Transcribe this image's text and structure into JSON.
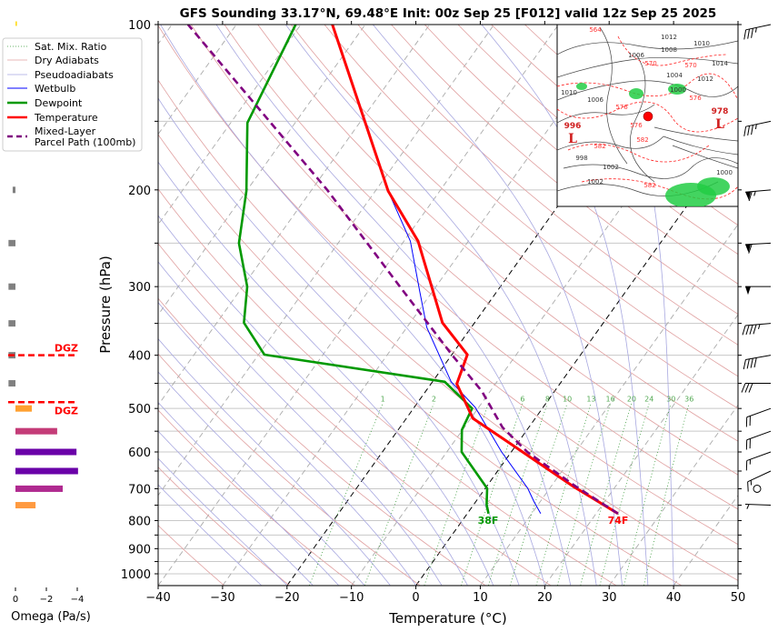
{
  "title": "GFS Sounding 33.17°N, 69.48°E Init: 00z Sep 25 [F012] valid 12z Sep 25 2025",
  "legend": [
    {
      "label": "Sat. Mix. Ratio",
      "color": "#3a9a3a",
      "style": "dotted"
    },
    {
      "label": "Dry Adiabats",
      "color": "#e0a0a0",
      "style": "solid"
    },
    {
      "label": "Pseudoadiabats",
      "color": "#a8a8e0",
      "style": "solid"
    },
    {
      "label": "Wetbulb",
      "color": "#0000ff",
      "style": "solid"
    },
    {
      "label": "Dewpoint",
      "color": "#009900",
      "style": "solid"
    },
    {
      "label": "Temperature",
      "color": "#ff0000",
      "style": "solid"
    },
    {
      "label": "Mixed-Layer",
      "label2": "Parcel Path (100mb)",
      "color": "#800080",
      "style": "dashed"
    }
  ],
  "axes": {
    "xlabel": "Temperature (°C)",
    "ylabel": "Pressure (hPa)",
    "xlim": [
      -40,
      50
    ],
    "ylim": [
      1050,
      100
    ],
    "y_scale": "log",
    "skewed_isotherms": true,
    "x_ticks": [
      "−40",
      "−30",
      "−20",
      "−10",
      "0",
      "10",
      "20",
      "30",
      "40",
      "50"
    ],
    "x_tick_values": [
      -40,
      -30,
      -20,
      -10,
      0,
      10,
      20,
      30,
      40,
      50
    ],
    "y_ticks": [
      "100",
      "200",
      "300",
      "400",
      "500",
      "600",
      "700",
      "800",
      "900",
      "1000"
    ],
    "y_tick_values": [
      100,
      200,
      300,
      400,
      500,
      600,
      700,
      800,
      900,
      1000
    ],
    "y_minor_ticks": [
      150,
      250,
      350,
      450,
      550,
      650,
      750,
      850,
      950
    ],
    "highlighted_isotherms": [
      0,
      -20
    ]
  },
  "chart_data": {
    "type": "line",
    "series": [
      {
        "name": "Temperature",
        "color": "#ff0000",
        "points": [
          [
            777,
            23.4
          ],
          [
            693,
            13.4
          ],
          [
            577,
            -1.4
          ],
          [
            521,
            -9.7
          ],
          [
            451,
            -16.0
          ],
          [
            399,
            -17.6
          ],
          [
            349,
            -25.0
          ],
          [
            248,
            -37.8
          ],
          [
            201,
            -48.0
          ],
          [
            100,
            -75.1
          ]
        ]
      },
      {
        "name": "Dewpoint",
        "color": "#009900",
        "points": [
          [
            777,
            3.3
          ],
          [
            748,
            2.0
          ],
          [
            699,
            0.3
          ],
          [
            600,
            -7.7
          ],
          [
            547,
            -10.1
          ],
          [
            500,
            -10.9
          ],
          [
            447,
            -18.1
          ],
          [
            399,
            -49.1
          ],
          [
            349,
            -55.8
          ],
          [
            300,
            -59.3
          ],
          [
            250,
            -65.4
          ],
          [
            201,
            -70.0
          ],
          [
            151,
            -77.4
          ],
          [
            100,
            -80.8
          ]
        ]
      },
      {
        "name": "Wetbulb",
        "color": "#0000ff",
        "points": [
          [
            777,
            11.4
          ],
          [
            740,
            9.1
          ],
          [
            699,
            6.6
          ],
          [
            600,
            -1.5
          ],
          [
            498,
            -10.5
          ],
          [
            447,
            -17.1
          ],
          [
            356,
            -26.9
          ],
          [
            306,
            -32.0
          ],
          [
            248,
            -39.0
          ],
          [
            201,
            -48.0
          ],
          [
            154,
            -58.2
          ],
          [
            100,
            -75.1
          ]
        ]
      },
      {
        "name": "Mixed-Layer Parcel Path (100mb)",
        "color": "#800080",
        "points": [
          [
            777,
            23.4
          ],
          [
            693,
            13.8
          ],
          [
            600,
            2.5
          ],
          [
            541,
            -4.1
          ],
          [
            465,
            -11.3
          ],
          [
            399,
            -20.0
          ],
          [
            300,
            -35.6
          ],
          [
            200,
            -57.6
          ],
          [
            100,
            -97.5
          ]
        ]
      }
    ],
    "mixing_ratio_lines_gkg": [
      1,
      2,
      4,
      6,
      8,
      10,
      13,
      16,
      20,
      24,
      30,
      36
    ],
    "mixing_ratio_labels": [
      "1",
      "2",
      "6",
      "8",
      "10",
      "13",
      "16",
      "20",
      "24",
      "30",
      "36"
    ],
    "mixing_ratio_label_values": [
      1,
      2,
      6,
      8,
      10,
      13,
      16,
      20,
      24,
      30,
      36
    ],
    "surface_labels": {
      "dewpoint": "38F",
      "temperature": "74F"
    }
  },
  "omega": {
    "xlabel": "Omega (Pa/s)",
    "ticks": [
      "0",
      "−2",
      "−4"
    ],
    "tick_values": [
      0,
      -2,
      -4
    ],
    "bars": [
      {
        "p": 100,
        "value": -0.1,
        "color": "#ffdd22"
      },
      {
        "p": 150,
        "value": -0.3,
        "color": "#ffdd22"
      },
      {
        "p": 200,
        "value": 0.18,
        "color": "#808080"
      },
      {
        "p": 250,
        "value": 0.45,
        "color": "#808080"
      },
      {
        "p": 300,
        "value": 0.45,
        "color": "#808080"
      },
      {
        "p": 350,
        "value": 0.45,
        "color": "#808080"
      },
      {
        "p": 400,
        "value": 0.45,
        "color": "#808080"
      },
      {
        "p": 450,
        "value": 0.45,
        "color": "#808080"
      },
      {
        "p": 500,
        "value": -1.06,
        "color": "#ffa030"
      },
      {
        "p": 550,
        "value": -2.7,
        "color": "#c43c78"
      },
      {
        "p": 600,
        "value": -3.95,
        "color": "#6a00a8"
      },
      {
        "p": 650,
        "value": -4.05,
        "color": "#6a00a8"
      },
      {
        "p": 700,
        "value": -3.06,
        "color": "#b02a90"
      },
      {
        "p": 750,
        "value": -1.3,
        "color": "#ff9a40"
      }
    ],
    "dgz": {
      "label": "DGZ",
      "top_hpa": 400,
      "bottom_hpa": 487,
      "color": "#ff0000"
    }
  },
  "winds": [
    {
      "p": 100,
      "speed_kt": 35,
      "dir": 258
    },
    {
      "p": 150,
      "speed_kt": 35,
      "dir": 258
    },
    {
      "p": 200,
      "speed_kt": 65,
      "dir": 265
    },
    {
      "p": 250,
      "speed_kt": 60,
      "dir": 267
    },
    {
      "p": 300,
      "speed_kt": 50,
      "dir": 270
    },
    {
      "p": 350,
      "speed_kt": 45,
      "dir": 265
    },
    {
      "p": 400,
      "speed_kt": 40,
      "dir": 260
    },
    {
      "p": 450,
      "speed_kt": 30,
      "dir": 270
    },
    {
      "p": 500,
      "speed_kt": 20,
      "dir": 250
    },
    {
      "p": 550,
      "speed_kt": 20,
      "dir": 250
    },
    {
      "p": 600,
      "speed_kt": 15,
      "dir": 250
    },
    {
      "p": 650,
      "speed_kt": 15,
      "dir": 245
    },
    {
      "p": 700,
      "speed_kt": 0,
      "dir": 0
    },
    {
      "p": 750,
      "speed_kt": 5,
      "dir": 272
    }
  ],
  "inset_map": {
    "site_marker_color": "#ff0000",
    "isobar_labels": [
      "1012",
      "1010",
      "1008",
      "1006",
      "1014",
      "1012",
      "1006",
      "1010",
      "1004",
      "1000",
      "998",
      "1002",
      "1002",
      "1000"
    ],
    "height_labels": [
      "564",
      "570",
      "576",
      "576",
      "582",
      "582",
      "582",
      "570",
      "576"
    ],
    "lows": [
      {
        "value": "996",
        "symbol": "L"
      },
      {
        "value": "978",
        "symbol": "L"
      }
    ]
  }
}
